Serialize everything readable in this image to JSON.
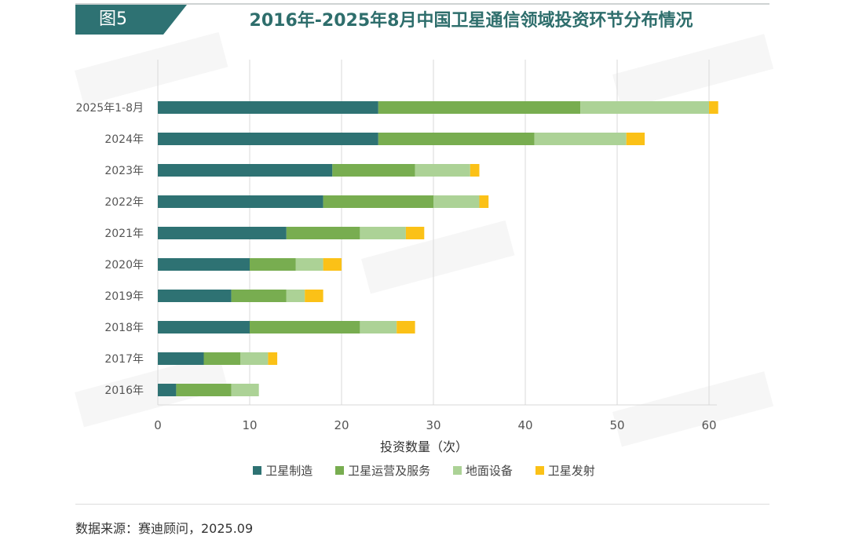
{
  "header": {
    "figure_label": "图5",
    "title": "2016年-2025年8月中国卫星通信领域投资环节分布情况"
  },
  "footer": {
    "source": "数据来源：赛迪顾问，2025.09"
  },
  "colors": {
    "header_bg": "#2e7273",
    "title": "#2e6e6c",
    "series": [
      "#2e7273",
      "#78ad50",
      "#acd296",
      "#fbc117"
    ]
  },
  "chart_data": {
    "type": "bar",
    "orientation": "horizontal",
    "stacked": true,
    "title": "2016年-2025年8月中国卫星通信领域投资环节分布情况",
    "xlabel": "投资数量（次）",
    "ylabel": "",
    "xlim": [
      0,
      60
    ],
    "xticks": [
      0,
      10,
      20,
      30,
      40,
      50,
      60
    ],
    "grid": true,
    "legend_position": "bottom",
    "categories": [
      "2025年1-8月",
      "2024年",
      "2023年",
      "2022年",
      "2021年",
      "2020年",
      "2019年",
      "2018年",
      "2017年",
      "2016年"
    ],
    "series": [
      {
        "name": "卫星制造",
        "values": [
          24,
          24,
          19,
          18,
          14,
          10,
          8,
          10,
          5,
          2
        ]
      },
      {
        "name": "卫星运营及服务",
        "values": [
          22,
          17,
          9,
          12,
          8,
          5,
          6,
          12,
          4,
          6
        ]
      },
      {
        "name": "地面设备",
        "values": [
          14,
          10,
          6,
          5,
          5,
          3,
          2,
          4,
          3,
          3
        ]
      },
      {
        "name": "卫星发射",
        "values": [
          1,
          2,
          1,
          1,
          2,
          2,
          2,
          2,
          1,
          0
        ]
      }
    ]
  }
}
